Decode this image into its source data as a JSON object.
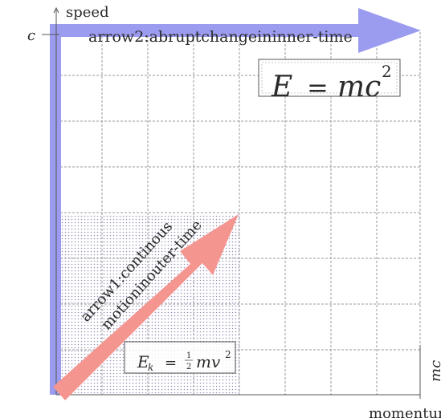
{
  "axes": {
    "y_label": "speed",
    "y_max_label": "c",
    "x_label": "momentum",
    "x_max_label": "mc"
  },
  "arrow1": {
    "line1": "arrow1:continous",
    "line2": "motioninouter-time",
    "color": "#f49590"
  },
  "arrow2": {
    "label": "arrow2:abruptchangeininner-time",
    "color": "#9b9cf0"
  },
  "formulas": {
    "rest_energy": {
      "E": "E",
      "eq": "=",
      "mc": "mc",
      "exp": "2"
    },
    "kinetic_energy": {
      "E": "E",
      "sub": "k",
      "eq": "=",
      "num": "1",
      "den": "2",
      "mv": "mv",
      "exp": "2"
    }
  },
  "colors": {
    "grid": "#9a9a9a",
    "axis": "#555555",
    "dots": "#9a90b8"
  }
}
